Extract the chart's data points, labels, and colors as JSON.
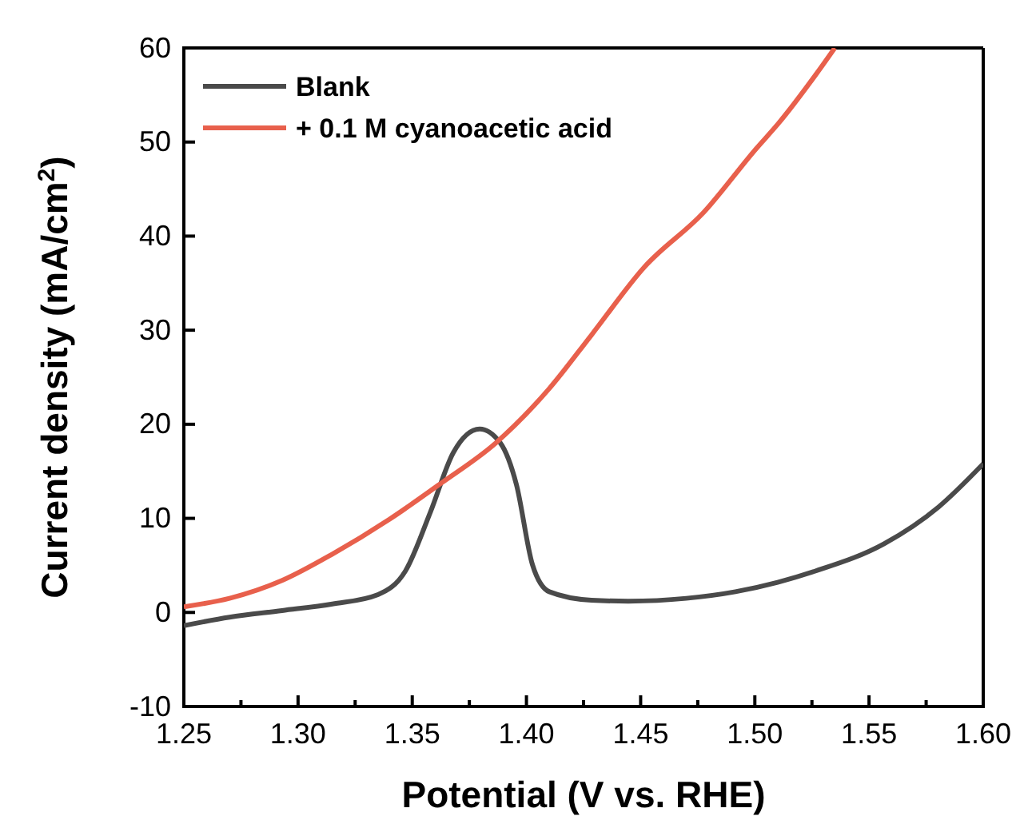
{
  "chart_data": {
    "type": "line",
    "xlabel": "Potential (V vs. RHE)",
    "ylabel": "Current density (mA/cm$^{2}$)",
    "xlim": [
      1.25,
      1.6
    ],
    "ylim": [
      -10,
      60
    ],
    "xticks": [
      {
        "value": 1.25,
        "label": "1.25"
      },
      {
        "value": 1.275,
        "label": null
      },
      {
        "value": 1.3,
        "label": "1.30"
      },
      {
        "value": 1.325,
        "label": null
      },
      {
        "value": 1.35,
        "label": "1.35"
      },
      {
        "value": 1.375,
        "label": null
      },
      {
        "value": 1.4,
        "label": "1.40"
      },
      {
        "value": 1.425,
        "label": null
      },
      {
        "value": 1.45,
        "label": "1.45"
      },
      {
        "value": 1.475,
        "label": null
      },
      {
        "value": 1.5,
        "label": "1.50"
      },
      {
        "value": 1.525,
        "label": null
      },
      {
        "value": 1.55,
        "label": "1.55"
      },
      {
        "value": 1.575,
        "label": null
      },
      {
        "value": 1.6,
        "label": "1.60"
      }
    ],
    "yticks": [
      -10,
      0,
      10,
      20,
      30,
      40,
      50,
      60
    ],
    "grid": false,
    "legend": "top left",
    "marker": "none",
    "line_style": "solid",
    "series": [
      {
        "name": "Blank",
        "color": "#4a4a4a",
        "x": [
          1.25,
          1.27,
          1.293,
          1.315,
          1.335,
          1.347,
          1.358,
          1.368,
          1.3795,
          1.3886,
          1.3956,
          1.4026,
          1.41,
          1.4285,
          1.4446,
          1.47,
          1.4915,
          1.51,
          1.5265,
          1.5566,
          1.5804,
          1.6
        ],
        "values": [
          -1.4,
          -0.5,
          0.2,
          0.9,
          1.9,
          4.4,
          10.7,
          17,
          19.5,
          18,
          13.6,
          5.1,
          2.2,
          1.3,
          1.2,
          1.5,
          2.2,
          3.2,
          4.4,
          7.3,
          11.2,
          15.8
        ]
      },
      {
        "name": "+ 0.1 M cyanoacetic acid",
        "color": "#e8604c",
        "x": [
          1.25,
          1.27,
          1.293,
          1.315,
          1.34,
          1.363,
          1.3865,
          1.41,
          1.4285,
          1.4516,
          1.4775,
          1.5006,
          1.5104,
          1.5265,
          1.535
        ],
        "values": [
          0.6,
          1.5,
          3.4,
          6.2,
          9.9,
          13.8,
          18,
          23.8,
          29.5,
          36.7,
          42.5,
          49.3,
          52,
          57.1,
          60
        ]
      }
    ]
  }
}
